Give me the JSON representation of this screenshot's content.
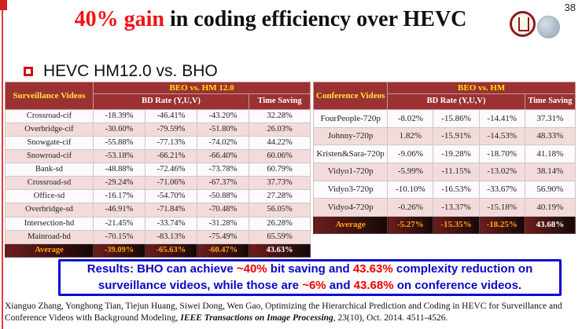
{
  "page_number": "38",
  "title": {
    "highlight": "40% gain",
    "rest": " in coding efficiency over HEVC"
  },
  "bullet_label": "HEVC HM12.0 vs. BHO",
  "colors": {
    "title_highlight_red": "#f21212",
    "table_header_bg": "#9c3132",
    "header_yellow_text": "#ffe400",
    "row_alt_pink": "#f2dcdb",
    "average_row_text": "#ffa812",
    "results_border_blue": "#0b0bd6",
    "results_text_blue": "#0808c8",
    "results_highlight_red": "#f20000"
  },
  "left_table": {
    "corner_header": "Surveillance Videos",
    "group_header": "BEO vs. HM 12.0",
    "bd_rate_header": "BD Rate (Y,U,V)",
    "time_saving_header": "Time Saving",
    "rows": [
      {
        "name": "Crossroad-cif",
        "y": "-18.39%",
        "u": "-46.41%",
        "v": "-43.20%",
        "time": "32.28%"
      },
      {
        "name": "Overbridge-cif",
        "y": "-30.60%",
        "u": "-79.59%",
        "v": "-51.80%",
        "time": "26.03%"
      },
      {
        "name": "Snowgate-cif",
        "y": "-55.88%",
        "u": "-77.13%",
        "v": "-74.02%",
        "time": "44.22%"
      },
      {
        "name": "Snowroad-cif",
        "y": "-53.18%",
        "u": "-66.21%",
        "v": "-66.40%",
        "time": "60.06%"
      },
      {
        "name": "Bank-sd",
        "y": "-48.88%",
        "u": "-72.46%",
        "v": "-73.78%",
        "time": "60.79%"
      },
      {
        "name": "Crossroad-sd",
        "y": "-29.24%",
        "u": "-71.06%",
        "v": "-67.37%",
        "time": "37.73%"
      },
      {
        "name": "Office-sd",
        "y": "-16.17%",
        "u": "-54.70%",
        "v": "-50.88%",
        "time": "27.28%"
      },
      {
        "name": "Overbridge-sd",
        "y": "-46.91%",
        "u": "-71.84%",
        "v": "-70.48%",
        "time": "56.05%"
      },
      {
        "name": "Intersection-hd",
        "y": "-21.45%",
        "u": "-33.74%",
        "v": "-31.28%",
        "time": "26.28%"
      },
      {
        "name": "Mainroad-hd",
        "y": "-70.15%",
        "u": "-83.13%",
        "v": "-75.49%",
        "time": "65.59%"
      }
    ],
    "average": {
      "name": "Average",
      "y": "-39.09%",
      "u": "-65.63%",
      "v": "-60.47%",
      "time": "43.63%"
    }
  },
  "right_table": {
    "corner_header": "Conference Videos",
    "group_header": "BEO vs. HM",
    "bd_rate_header": "BD Rate (Y,U,V)",
    "time_saving_header": "Time Saving",
    "rows": [
      {
        "name": "FourPeople-720p",
        "y": "-8.02%",
        "u": "-15.86%",
        "v": "-14.41%",
        "time": "37.31%"
      },
      {
        "name": "Johnny-720p",
        "y": "1.82%",
        "u": "-15.91%",
        "v": "-14.53%",
        "time": "48.33%"
      },
      {
        "name": "Kristen&Sara-720p",
        "y": "-9.06%",
        "u": "-19.28%",
        "v": "-18.70%",
        "time": "41.18%"
      },
      {
        "name": "Vidyo1-720p",
        "y": "-5.99%",
        "u": "-11.15%",
        "v": "-13.02%",
        "time": "38.14%"
      },
      {
        "name": "Vidyo3-720p",
        "y": "-10.10%",
        "u": "-16.53%",
        "v": "-33.67%",
        "time": "56.90%"
      },
      {
        "name": "Vidyo4-720p",
        "y": "-0.26%",
        "u": "-13.37%",
        "v": "-15.18%",
        "time": "40.19%"
      }
    ],
    "average": {
      "name": "Average",
      "y": "-5.27%",
      "u": "-15.35%",
      "v": "-18.25%",
      "time": "43.68%"
    }
  },
  "results": {
    "segments": [
      {
        "text": "Results: BHO can achieve ",
        "color": "blue"
      },
      {
        "text": "~40%",
        "color": "red"
      },
      {
        "text": " bit saving and ",
        "color": "blue"
      },
      {
        "text": "43.63%",
        "color": "red"
      },
      {
        "text": " complexity reduction on surveillance videos, while those are ",
        "color": "blue"
      },
      {
        "text": "~6%",
        "color": "red"
      },
      {
        "text": " and ",
        "color": "blue"
      },
      {
        "text": "43.68%",
        "color": "red"
      },
      {
        "text": " on conference videos.",
        "color": "blue"
      }
    ]
  },
  "citation": {
    "pre": "Xianguo Zhang, Yonghong Tian, Tiejun Huang, Siwei Dong, Wen Gao, Optimizing the Hierarchical Prediction and Coding in HEVC for Surveillance and Conference Videos with Background Modeling, ",
    "journal": "IEEE Transactions on Image Processing",
    "tail": ", 23(10), Oct. 2014. 4511-4526."
  }
}
